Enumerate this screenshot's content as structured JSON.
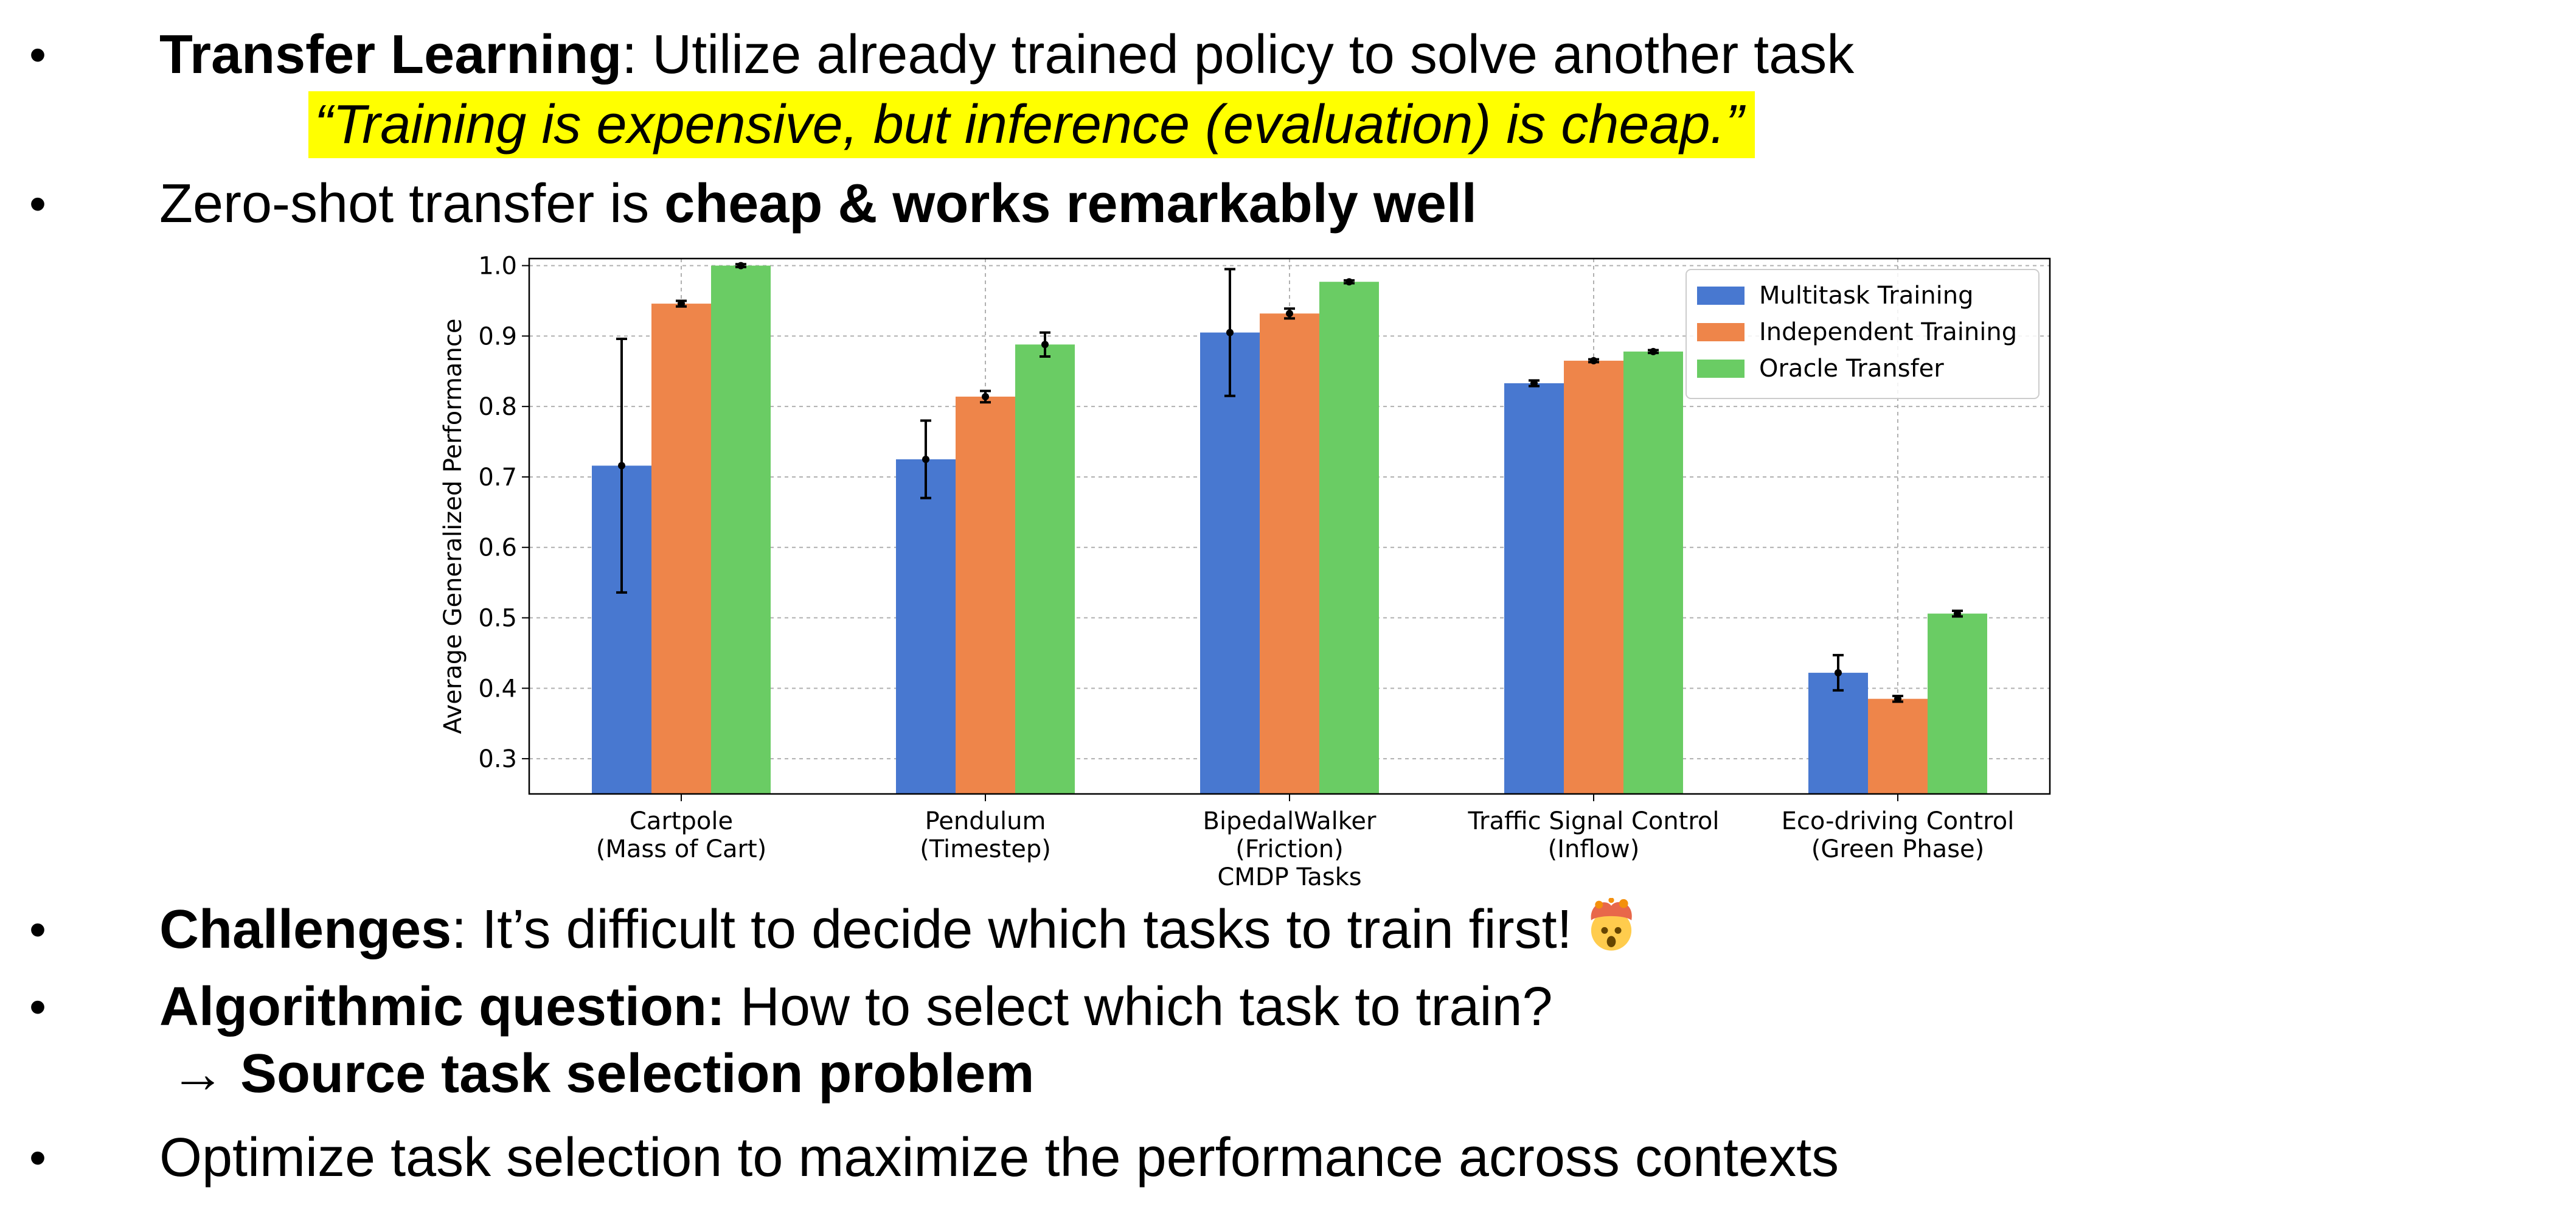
{
  "bullets": {
    "b1": {
      "bold": "Transfer Learning",
      "rest": ": Utilize already trained policy to solve another task"
    },
    "quote": "“Training is expensive, but inference (evaluation) is cheap.”",
    "b2": {
      "plain": "Zero-shot transfer is ",
      "bold": "cheap & works remarkably well"
    },
    "b3": {
      "bold": "Challenges",
      "rest": ": It’s difficult to decide which tasks to train first!"
    },
    "b4": {
      "bold": "Algorithmic question:",
      "rest": " How to select which task to train?"
    },
    "b4_arrow": "→ Source task selection problem",
    "b5": {
      "plain": "Optimize task selection to maximize the performance across contexts"
    },
    "bullet_symbol": "•",
    "emoji_icon": "exploding-head-icon"
  },
  "chart_data": {
    "type": "bar",
    "xlabel": "CMDP Tasks",
    "ylabel": "Average Generalized Performance",
    "ylim": [
      0.25,
      1.01
    ],
    "yticks": [
      "0.3",
      "0.4",
      "0.5",
      "0.6",
      "0.7",
      "0.8",
      "0.9",
      "1.0"
    ],
    "grid": true,
    "legend_placement": "top-right",
    "categories": [
      [
        "Cartpole",
        "(Mass of Cart)"
      ],
      [
        "Pendulum",
        "(Timestep)"
      ],
      [
        "BipedalWalker",
        "(Friction)"
      ],
      [
        "Traffic Signal Control",
        "(Inflow)"
      ],
      [
        "Eco-driving Control",
        "(Green Phase)"
      ]
    ],
    "series": [
      {
        "name": "Multitask Training",
        "color": "#4878d0",
        "values": [
          0.716,
          0.725,
          0.905,
          0.833,
          0.422
        ],
        "errors": [
          0.18,
          0.055,
          0.09,
          0.004,
          0.025
        ]
      },
      {
        "name": "Independent Training",
        "color": "#ee854a",
        "values": [
          0.946,
          0.814,
          0.932,
          0.865,
          0.385
        ],
        "errors": [
          0.004,
          0.008,
          0.007,
          0.002,
          0.004
        ]
      },
      {
        "name": "Oracle Transfer",
        "color": "#6acc64",
        "values": [
          1.0,
          0.888,
          0.977,
          0.878,
          0.506
        ],
        "errors": [
          0.002,
          0.017,
          0.002,
          0.002,
          0.004
        ]
      }
    ]
  }
}
